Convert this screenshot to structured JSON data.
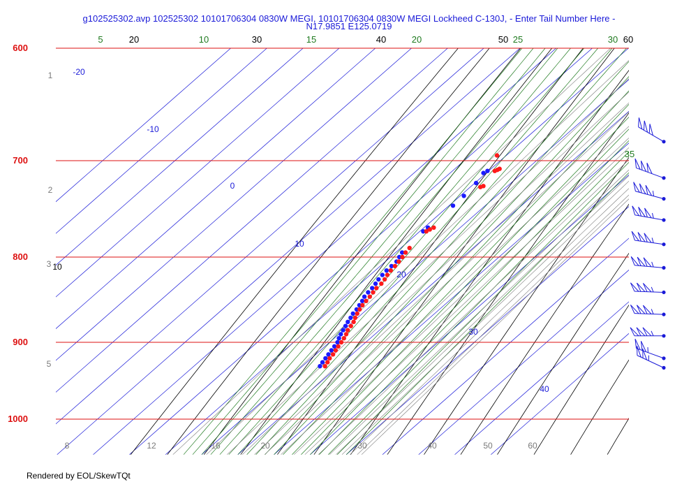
{
  "title_line1": "g102525302.avp 102525302 10101706304 0830W MEGI, 10101706304 0830W MEGI Lockheed C-130J, - Enter Tail Number Here -",
  "title_line2": "N17.9851 E125.0719",
  "footer": "Rendered by EOL/SkewTQt",
  "colors": {
    "isobar": "#dd1111",
    "isotherm": "#1a1ad8",
    "dry_adiabat": "#000000",
    "moist_adiabat": "#1f7a1f",
    "mixing": "#7a7a7a",
    "temperature": "#ff1a1a",
    "dewpoint": "#1a1aff"
  },
  "chart_data": {
    "type": "skew-t",
    "grid": true,
    "pressure_labels": [
      "600",
      "700",
      "800",
      "900",
      "1000"
    ],
    "isotherm_labels": [
      "-20",
      "-10",
      "0",
      "10",
      "20",
      "30",
      "40"
    ],
    "dry_adiabat_top_labels": [
      "20",
      "30",
      "40",
      "50",
      "60"
    ],
    "dry_adiabat_side_label": "10",
    "moist_adiabat_top_labels": [
      "5",
      "10",
      "15",
      "20",
      "25",
      "30"
    ],
    "moist_adiabat_side_label": "35",
    "mixing_ratio_bottom_labels": [
      "8",
      "12",
      "16",
      "20",
      "30",
      "40",
      "50",
      "60"
    ],
    "height_km_labels": [
      "1",
      "2",
      "3",
      "5"
    ],
    "temperature": [
      {
        "p": 695,
        "t": 12.0
      },
      {
        "p": 708,
        "t": 16.3
      },
      {
        "p": 709,
        "t": 16.0
      },
      {
        "p": 710,
        "t": 15.6
      },
      {
        "p": 725,
        "t": 16.7
      },
      {
        "p": 726,
        "t": 16.2
      },
      {
        "p": 768,
        "t": 15.0
      },
      {
        "p": 770,
        "t": 14.5
      },
      {
        "p": 772,
        "t": 14.1
      },
      {
        "p": 790,
        "t": 14.2
      },
      {
        "p": 795,
        "t": 14.4
      },
      {
        "p": 800,
        "t": 14.8
      },
      {
        "p": 805,
        "t": 15.1
      },
      {
        "p": 810,
        "t": 15.3
      },
      {
        "p": 815,
        "t": 15.4
      },
      {
        "p": 820,
        "t": 15.7
      },
      {
        "p": 825,
        "t": 16.2
      },
      {
        "p": 830,
        "t": 16.5
      },
      {
        "p": 835,
        "t": 16.4
      },
      {
        "p": 840,
        "t": 16.7
      },
      {
        "p": 845,
        "t": 17.0
      },
      {
        "p": 850,
        "t": 17.2
      },
      {
        "p": 855,
        "t": 17.4
      },
      {
        "p": 860,
        "t": 17.8
      },
      {
        "p": 865,
        "t": 18.3
      },
      {
        "p": 870,
        "t": 18.9
      },
      {
        "p": 875,
        "t": 19.6
      },
      {
        "p": 880,
        "t": 20.0
      },
      {
        "p": 885,
        "t": 20.3
      },
      {
        "p": 890,
        "t": 21.0
      },
      {
        "p": 895,
        "t": 21.5
      },
      {
        "p": 900,
        "t": 21.9
      },
      {
        "p": 905,
        "t": 22.2
      },
      {
        "p": 910,
        "t": 22.6
      },
      {
        "p": 915,
        "t": 23.0
      },
      {
        "p": 920,
        "t": 23.2
      },
      {
        "p": 925,
        "t": 23.7
      },
      {
        "p": 930,
        "t": 24.1
      }
    ],
    "dewpoint": [
      {
        "p": 710,
        "t": 13.7
      },
      {
        "p": 712,
        "t": 13.2
      },
      {
        "p": 722,
        "t": 14.0
      },
      {
        "p": 735,
        "t": 14.3
      },
      {
        "p": 745,
        "t": 14.1
      },
      {
        "p": 768,
        "t": 13.5
      },
      {
        "p": 772,
        "t": 13.3
      },
      {
        "p": 795,
        "t": 13.5
      },
      {
        "p": 800,
        "t": 14.0
      },
      {
        "p": 805,
        "t": 14.5
      },
      {
        "p": 810,
        "t": 14.4
      },
      {
        "p": 815,
        "t": 14.3
      },
      {
        "p": 820,
        "t": 14.4
      },
      {
        "p": 825,
        "t": 14.6
      },
      {
        "p": 830,
        "t": 15.0
      },
      {
        "p": 835,
        "t": 15.3
      },
      {
        "p": 840,
        "t": 15.4
      },
      {
        "p": 845,
        "t": 15.6
      },
      {
        "p": 850,
        "t": 16.2
      },
      {
        "p": 855,
        "t": 16.6
      },
      {
        "p": 860,
        "t": 17.0
      },
      {
        "p": 865,
        "t": 17.2
      },
      {
        "p": 870,
        "t": 17.7
      },
      {
        "p": 875,
        "t": 18.1
      },
      {
        "p": 880,
        "t": 18.6
      },
      {
        "p": 885,
        "t": 19.1
      },
      {
        "p": 890,
        "t": 19.6
      },
      {
        "p": 895,
        "t": 20.2
      },
      {
        "p": 900,
        "t": 20.9
      },
      {
        "p": 905,
        "t": 21.2
      },
      {
        "p": 910,
        "t": 21.5
      },
      {
        "p": 915,
        "t": 21.8
      },
      {
        "p": 920,
        "t": 22.1
      },
      {
        "p": 925,
        "t": 22.4
      },
      {
        "p": 930,
        "t": 22.8
      }
    ],
    "wind_barbs": [
      {
        "p": 682,
        "direction_deg": 300,
        "speed_kt": 30
      },
      {
        "p": 717,
        "direction_deg": 290,
        "speed_kt": 30
      },
      {
        "p": 738,
        "direction_deg": 285,
        "speed_kt": 35
      },
      {
        "p": 760,
        "direction_deg": 280,
        "speed_kt": 35
      },
      {
        "p": 786,
        "direction_deg": 278,
        "speed_kt": 35
      },
      {
        "p": 812,
        "direction_deg": 275,
        "speed_kt": 35
      },
      {
        "p": 840,
        "direction_deg": 272,
        "speed_kt": 35
      },
      {
        "p": 866,
        "direction_deg": 272,
        "speed_kt": 35
      },
      {
        "p": 892,
        "direction_deg": 270,
        "speed_kt": 35
      },
      {
        "p": 920,
        "direction_deg": 290,
        "speed_kt": 25
      },
      {
        "p": 932,
        "direction_deg": 295,
        "speed_kt": 25
      }
    ]
  }
}
